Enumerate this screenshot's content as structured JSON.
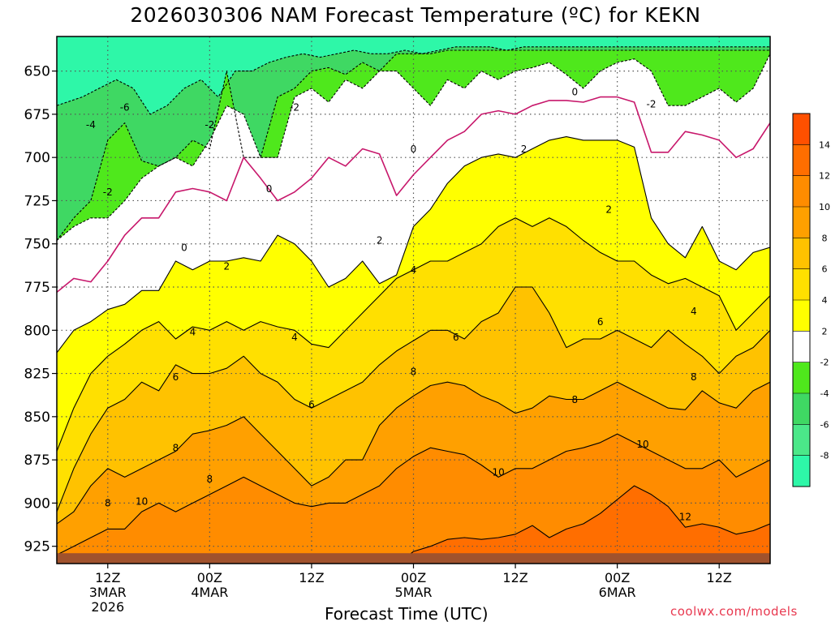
{
  "chart_data": {
    "type": "heatmap",
    "title": "2026030306 NAM Forecast Temperature (ºC) for KEKN",
    "xlabel": "Forecast Time (UTC)",
    "y_ticks": [
      650,
      675,
      700,
      725,
      750,
      775,
      800,
      825,
      850,
      875,
      900,
      925
    ],
    "ylim": [
      935,
      630
    ],
    "x_ticks": [
      {
        "hour": 6,
        "lines": [
          "12Z",
          "3MAR",
          "2026"
        ]
      },
      {
        "hour": 18,
        "lines": [
          "00Z",
          "4MAR"
        ]
      },
      {
        "hour": 30,
        "lines": [
          "12Z"
        ]
      },
      {
        "hour": 42,
        "lines": [
          "00Z",
          "5MAR"
        ]
      },
      {
        "hour": 54,
        "lines": [
          "12Z"
        ]
      },
      {
        "hour": 66,
        "lines": [
          "00Z",
          "6MAR"
        ]
      },
      {
        "hour": 78,
        "lines": [
          "12Z"
        ]
      }
    ],
    "xlim": [
      0,
      84
    ],
    "grid": true,
    "colorbar": {
      "position": "right",
      "bands": [
        {
          "from": -10,
          "to": -8,
          "color": "#2ef7a8"
        },
        {
          "from": -8,
          "to": -6,
          "color": "#4be889"
        },
        {
          "from": -6,
          "to": -4,
          "color": "#3fd863"
        },
        {
          "from": -4,
          "to": -2,
          "color": "#4fe81c"
        },
        {
          "from": -2,
          "to": 2,
          "color": "#ffffff"
        },
        {
          "from": 2,
          "to": 4,
          "color": "#ffff00"
        },
        {
          "from": 4,
          "to": 6,
          "color": "#ffe000"
        },
        {
          "from": 6,
          "to": 8,
          "color": "#ffc200"
        },
        {
          "from": 8,
          "to": 10,
          "color": "#ffa000"
        },
        {
          "from": 10,
          "to": 12,
          "color": "#ff8c00"
        },
        {
          "from": 12,
          "to": 14,
          "color": "#ff6e00"
        },
        {
          "from": 14,
          "to": 16,
          "color": "#ff5000"
        }
      ],
      "tick_labels": [
        "-8",
        "-6",
        "-4",
        "-2",
        "2",
        "4",
        "6",
        "8",
        "10",
        "12",
        "14"
      ]
    },
    "isotherms": [
      {
        "value": -6,
        "style": "dashed",
        "hours": [
          0,
          3,
          5,
          7,
          9,
          11,
          13,
          15,
          17,
          19,
          21,
          23,
          25,
          27,
          29,
          31,
          33,
          35,
          37,
          39,
          41,
          43,
          45,
          47,
          49,
          51,
          53,
          55,
          57,
          59,
          61,
          63,
          65,
          67,
          69,
          71,
          73,
          75,
          77,
          79,
          81,
          83,
          84
        ],
        "pressures": [
          670,
          665,
          660,
          655,
          660,
          675,
          670,
          660,
          655,
          665,
          650,
          650,
          645,
          642,
          640,
          642,
          640,
          638,
          640,
          640,
          638,
          640,
          638,
          636,
          636,
          636,
          638,
          636,
          636,
          636,
          636,
          636,
          636,
          636,
          636,
          636,
          636,
          636,
          636,
          636,
          636,
          636,
          636
        ]
      },
      {
        "value": -4,
        "style": "dashed",
        "hours": [
          0,
          2,
          4,
          6,
          8,
          10,
          12,
          14,
          16,
          18,
          20,
          22,
          24,
          26,
          28,
          30,
          32,
          34,
          36,
          38,
          40,
          42,
          44,
          46,
          48,
          50,
          52,
          54,
          56,
          58,
          60,
          62,
          64,
          66,
          68,
          70,
          72,
          74,
          76,
          78,
          80,
          82,
          84
        ],
        "pressures": [
          748,
          735,
          725,
          690,
          680,
          702,
          705,
          700,
          690,
          695,
          650,
          700,
          700,
          665,
          660,
          650,
          648,
          652,
          645,
          650,
          640,
          640,
          640,
          638,
          638,
          638,
          638,
          638,
          638,
          638,
          638,
          638,
          638,
          638,
          638,
          638,
          638,
          638,
          638,
          638,
          638,
          638,
          638
        ]
      },
      {
        "value": -2,
        "style": "dashed",
        "hours": [
          0,
          2,
          4,
          6,
          8,
          10,
          12,
          14,
          16,
          18,
          20,
          22,
          24,
          26,
          28,
          30,
          32,
          34,
          36,
          38,
          40,
          42,
          44,
          46,
          48,
          50,
          52,
          54,
          56,
          58,
          60,
          62,
          64,
          66,
          68,
          70,
          72,
          74,
          76,
          78,
          80,
          82,
          84
        ],
        "pressures": [
          748,
          740,
          735,
          735,
          725,
          712,
          705,
          700,
          705,
          690,
          670,
          675,
          700,
          700,
          665,
          660,
          668,
          655,
          660,
          650,
          650,
          660,
          670,
          655,
          660,
          650,
          655,
          650,
          648,
          645,
          652,
          660,
          650,
          645,
          643,
          650,
          670,
          670,
          665,
          660,
          668,
          660,
          640
        ]
      },
      {
        "value": 0,
        "style": "solid",
        "color": "#c7176b",
        "hours": [
          0,
          2,
          4,
          6,
          8,
          10,
          12,
          14,
          16,
          18,
          20,
          22,
          24,
          26,
          28,
          30,
          32,
          34,
          36,
          38,
          40,
          42,
          44,
          46,
          48,
          50,
          52,
          54,
          56,
          58,
          60,
          62,
          64,
          66,
          68,
          70,
          72,
          74,
          76,
          78,
          80,
          82,
          84
        ],
        "pressures": [
          778,
          770,
          772,
          760,
          745,
          735,
          735,
          720,
          718,
          720,
          725,
          700,
          712,
          725,
          720,
          712,
          700,
          705,
          695,
          698,
          722,
          710,
          700,
          690,
          685,
          675,
          673,
          675,
          670,
          667,
          667,
          668,
          665,
          665,
          668,
          697,
          697,
          685,
          687,
          690,
          700,
          695,
          680
        ]
      },
      {
        "value": 2,
        "style": "solid",
        "hours": [
          0,
          2,
          4,
          6,
          8,
          10,
          12,
          14,
          16,
          18,
          20,
          22,
          24,
          26,
          28,
          30,
          32,
          34,
          36,
          38,
          40,
          42,
          44,
          46,
          48,
          50,
          52,
          54,
          56,
          58,
          60,
          62,
          64,
          66,
          68,
          70,
          72,
          74,
          76,
          78,
          80,
          82,
          84
        ],
        "pressures": [
          813,
          800,
          795,
          788,
          785,
          777,
          777,
          760,
          765,
          760,
          760,
          758,
          760,
          745,
          750,
          760,
          775,
          770,
          760,
          773,
          768,
          740,
          730,
          715,
          705,
          700,
          698,
          700,
          695,
          690,
          688,
          690,
          690,
          690,
          694,
          735,
          750,
          758,
          740,
          760,
          765,
          755,
          752
        ]
      },
      {
        "value": 4,
        "style": "solid",
        "hours": [
          0,
          2,
          4,
          6,
          8,
          10,
          12,
          14,
          16,
          18,
          20,
          22,
          24,
          26,
          28,
          30,
          32,
          34,
          36,
          38,
          40,
          42,
          44,
          46,
          48,
          50,
          52,
          54,
          56,
          58,
          60,
          62,
          64,
          66,
          68,
          70,
          72,
          74,
          76,
          78,
          80,
          82,
          84
        ],
        "pressures": [
          870,
          845,
          825,
          815,
          808,
          800,
          795,
          805,
          798,
          800,
          795,
          800,
          795,
          798,
          800,
          808,
          810,
          800,
          790,
          780,
          770,
          765,
          760,
          760,
          755,
          750,
          740,
          735,
          740,
          735,
          740,
          748,
          755,
          760,
          760,
          768,
          773,
          770,
          775,
          780,
          800,
          790,
          780
        ]
      },
      {
        "value": 6,
        "style": "solid",
        "hours": [
          0,
          2,
          4,
          6,
          8,
          10,
          12,
          14,
          16,
          18,
          20,
          22,
          24,
          26,
          28,
          30,
          32,
          34,
          36,
          38,
          40,
          42,
          44,
          46,
          48,
          50,
          52,
          54,
          56,
          58,
          60,
          62,
          64,
          66,
          68,
          70,
          72,
          74,
          76,
          78,
          80,
          82,
          84
        ],
        "pressures": [
          905,
          880,
          860,
          845,
          840,
          830,
          835,
          820,
          825,
          825,
          822,
          815,
          825,
          830,
          840,
          845,
          840,
          835,
          830,
          820,
          812,
          806,
          800,
          800,
          805,
          795,
          790,
          775,
          775,
          790,
          810,
          805,
          805,
          800,
          805,
          810,
          800,
          808,
          815,
          825,
          815,
          810,
          800
        ]
      },
      {
        "value": 8,
        "style": "solid",
        "hours": [
          0,
          2,
          4,
          6,
          8,
          10,
          12,
          14,
          16,
          18,
          20,
          22,
          24,
          26,
          28,
          30,
          32,
          34,
          36,
          38,
          40,
          42,
          44,
          46,
          48,
          50,
          52,
          54,
          56,
          58,
          60,
          62,
          64,
          66,
          68,
          70,
          72,
          74,
          76,
          78,
          80,
          82,
          84
        ],
        "pressures": [
          912,
          905,
          890,
          880,
          885,
          880,
          875,
          870,
          860,
          858,
          855,
          850,
          860,
          870,
          880,
          890,
          885,
          875,
          875,
          855,
          845,
          838,
          832,
          830,
          832,
          838,
          842,
          848,
          845,
          838,
          840,
          840,
          835,
          830,
          835,
          840,
          845,
          846,
          835,
          842,
          845,
          835,
          830
        ]
      },
      {
        "value": 10,
        "style": "solid",
        "hours": [
          0,
          2,
          4,
          6,
          8,
          10,
          12,
          14,
          16,
          18,
          20,
          22,
          24,
          26,
          28,
          30,
          32,
          34,
          36,
          38,
          40,
          42,
          44,
          46,
          48,
          50,
          52,
          54,
          56,
          58,
          60,
          62,
          64,
          66,
          68,
          70,
          72,
          74,
          76,
          78,
          80,
          82,
          84
        ],
        "pressures": [
          930,
          925,
          920,
          915,
          915,
          905,
          900,
          905,
          900,
          895,
          890,
          885,
          890,
          895,
          900,
          902,
          900,
          900,
          895,
          890,
          880,
          873,
          868,
          870,
          872,
          878,
          885,
          880,
          880,
          875,
          870,
          868,
          865,
          860,
          865,
          870,
          875,
          880,
          880,
          875,
          885,
          880,
          875
        ]
      },
      {
        "value": 12,
        "style": "solid",
        "hours": [
          0,
          4,
          8,
          12,
          16,
          20,
          24,
          28,
          32,
          36,
          40,
          42,
          44,
          46,
          48,
          50,
          52,
          54,
          56,
          58,
          60,
          62,
          64,
          66,
          68,
          70,
          72,
          74,
          76,
          78,
          80,
          82,
          84
        ],
        "pressures": [
          936,
          936,
          936,
          936,
          936,
          936,
          936,
          936,
          936,
          936,
          936,
          928,
          925,
          921,
          920,
          921,
          920,
          918,
          913,
          920,
          915,
          912,
          906,
          898,
          890,
          895,
          902,
          914,
          912,
          914,
          918,
          916,
          912
        ]
      }
    ],
    "contour_labels": [
      {
        "text": "-6",
        "hour": 8,
        "pressure": 673
      },
      {
        "text": "-4",
        "hour": 4,
        "pressure": 683
      },
      {
        "text": "-2",
        "hour": 18,
        "pressure": 683
      },
      {
        "text": "-2",
        "hour": 28,
        "pressure": 673
      },
      {
        "text": "-2",
        "hour": 70,
        "pressure": 671
      },
      {
        "text": "-2",
        "hour": 6,
        "pressure": 722
      },
      {
        "text": "0",
        "hour": 15,
        "pressure": 754
      },
      {
        "text": "0",
        "hour": 25,
        "pressure": 720
      },
      {
        "text": "0",
        "hour": 42,
        "pressure": 697
      },
      {
        "text": "0",
        "hour": 61,
        "pressure": 664
      },
      {
        "text": "2",
        "hour": 20,
        "pressure": 765
      },
      {
        "text": "2",
        "hour": 38,
        "pressure": 750
      },
      {
        "text": "2",
        "hour": 55,
        "pressure": 697
      },
      {
        "text": "2",
        "hour": 65,
        "pressure": 732
      },
      {
        "text": "4",
        "hour": 16,
        "pressure": 803
      },
      {
        "text": "4",
        "hour": 28,
        "pressure": 806
      },
      {
        "text": "4",
        "hour": 42,
        "pressure": 767
      },
      {
        "text": "4",
        "hour": 75,
        "pressure": 791
      },
      {
        "text": "6",
        "hour": 14,
        "pressure": 829
      },
      {
        "text": "6",
        "hour": 30,
        "pressure": 845
      },
      {
        "text": "6",
        "hour": 47,
        "pressure": 806
      },
      {
        "text": "6",
        "hour": 64,
        "pressure": 797
      },
      {
        "text": "8",
        "hour": 14,
        "pressure": 870
      },
      {
        "text": "8",
        "hour": 18,
        "pressure": 888
      },
      {
        "text": "8",
        "hour": 6,
        "pressure": 902
      },
      {
        "text": "8",
        "hour": 42,
        "pressure": 826
      },
      {
        "text": "8",
        "hour": 61,
        "pressure": 842
      },
      {
        "text": "8",
        "hour": 75,
        "pressure": 829
      },
      {
        "text": "10",
        "hour": 10,
        "pressure": 901
      },
      {
        "text": "10",
        "hour": 52,
        "pressure": 884
      },
      {
        "text": "10",
        "hour": 69,
        "pressure": 868
      },
      {
        "text": "12",
        "hour": 74,
        "pressure": 910
      }
    ],
    "ground": {
      "pressure_top": 929,
      "color": "#a0522d"
    },
    "x_axis_title": "Forecast Time (UTC)",
    "watermark": "coolwx.com/models"
  }
}
